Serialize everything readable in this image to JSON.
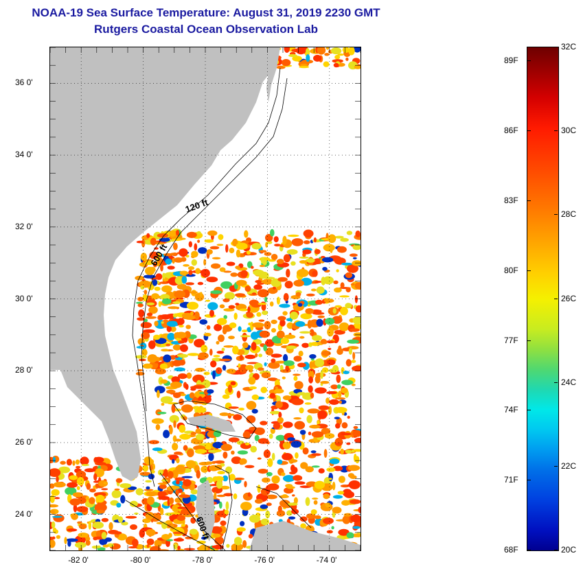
{
  "title": {
    "line1": "NOAA-19 Sea Surface Temperature:  August 31, 2019 2230 GMT",
    "line2": "Rutgers Coastal Ocean Observation Lab"
  },
  "map": {
    "lon_range": [
      -83,
      -73
    ],
    "lat_range": [
      23,
      37
    ],
    "lat_ticks": [
      {
        "value": 24,
        "label": "24 0'"
      },
      {
        "value": 26,
        "label": "26 0'"
      },
      {
        "value": 28,
        "label": "28 0'"
      },
      {
        "value": 30,
        "label": "30 0'"
      },
      {
        "value": 32,
        "label": "32 0'"
      },
      {
        "value": 34,
        "label": "34 0'"
      },
      {
        "value": 36,
        "label": "36 0'"
      }
    ],
    "lon_ticks": [
      {
        "value": -82,
        "label": "-82 0'"
      },
      {
        "value": -80,
        "label": "-80 0'"
      },
      {
        "value": -78,
        "label": "-78 0'"
      },
      {
        "value": -76,
        "label": "-76 0'"
      },
      {
        "value": -74,
        "label": "-74 0'"
      }
    ],
    "depth_labels": [
      {
        "text": "120 ft",
        "lon": -78.6,
        "lat": 32.4,
        "rotate": -20
      },
      {
        "text": "600 ft",
        "lon": -79.6,
        "lat": 30.9,
        "rotate": -60
      },
      {
        "text": "600 ft",
        "lon": -78.3,
        "lat": 23.9,
        "rotate": 70
      }
    ],
    "land_color": "#c0c0c0",
    "no_data_color": "#ffffff"
  },
  "colorbar": {
    "min_c": 20,
    "max_c": 32,
    "celsius_labels": [
      {
        "value": 32,
        "label": "32C"
      },
      {
        "value": 30,
        "label": "30C"
      },
      {
        "value": 28,
        "label": "28C"
      },
      {
        "value": 26,
        "label": "26C"
      },
      {
        "value": 24,
        "label": "24C"
      },
      {
        "value": 22,
        "label": "22C"
      },
      {
        "value": 20,
        "label": "20C"
      }
    ],
    "fahrenheit_labels": [
      {
        "value": 89,
        "label": "89F"
      },
      {
        "value": 86,
        "label": "86F"
      },
      {
        "value": 83,
        "label": "83F"
      },
      {
        "value": 80,
        "label": "80F"
      },
      {
        "value": 77,
        "label": "77F"
      },
      {
        "value": 74,
        "label": "74F"
      },
      {
        "value": 71,
        "label": "71F"
      },
      {
        "value": 68,
        "label": "68F"
      }
    ]
  }
}
